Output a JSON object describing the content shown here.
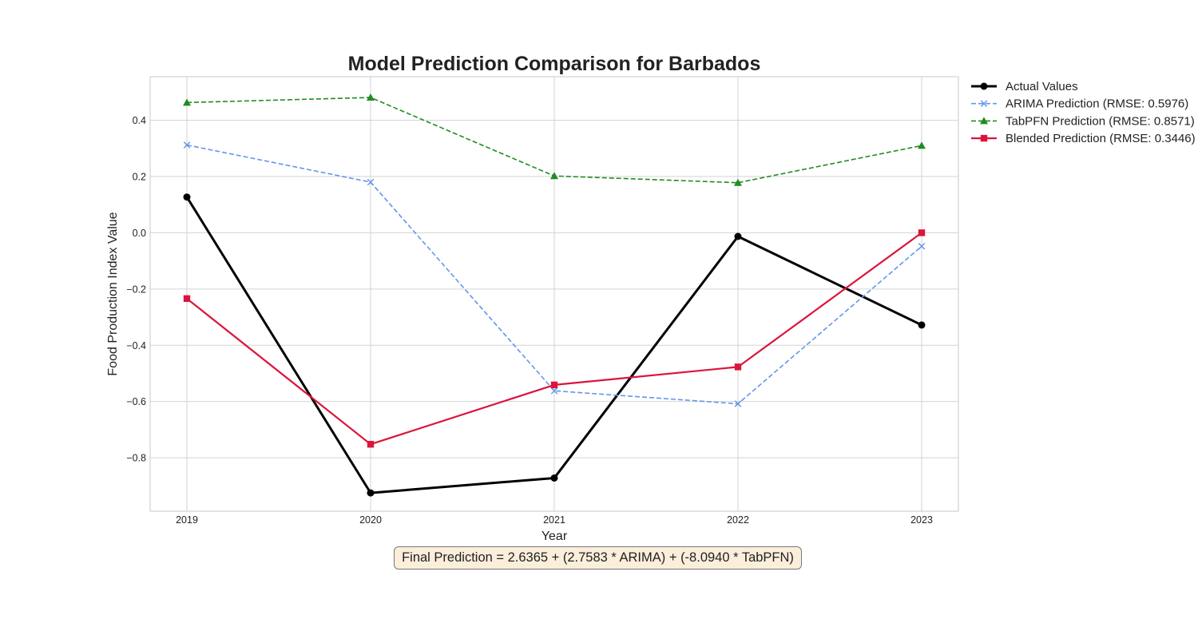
{
  "chart_data": {
    "type": "line",
    "title": "Model Prediction Comparison for Barbados",
    "xlabel": "Year",
    "ylabel": "Food Production Index Value",
    "x": [
      "2019",
      "2020",
      "2021",
      "2022",
      "2023"
    ],
    "xlim": [
      2018.8,
      2023.2
    ],
    "ylim": [
      -0.99,
      0.555
    ],
    "y_ticks": [
      "0.4",
      "0.2",
      "0.0",
      "−0.2",
      "−0.4",
      "−0.6",
      "−0.8"
    ],
    "y_tick_values": [
      0.4,
      0.2,
      0.0,
      -0.2,
      -0.4,
      -0.6,
      -0.8
    ],
    "grid": true,
    "legend_position": "outside-top-right",
    "series": [
      {
        "name": "Actual Values",
        "values": [
          0.127,
          -0.925,
          -0.872,
          -0.013,
          -0.328
        ],
        "color": "#000000",
        "marker": "circle",
        "line_style": "solid"
      },
      {
        "name": "ARIMA Prediction (RMSE: 0.5976)",
        "values": [
          0.312,
          0.18,
          -0.562,
          -0.608,
          -0.048
        ],
        "color": "#6495ed",
        "marker": "x",
        "line_style": "dashed"
      },
      {
        "name": "TabPFN Prediction (RMSE: 0.8571)",
        "values": [
          0.463,
          0.481,
          0.202,
          0.178,
          0.31
        ],
        "color": "#228b22",
        "marker": "triangle",
        "line_style": "dashed"
      },
      {
        "name": "Blended Prediction (RMSE: 0.3446)",
        "values": [
          -0.234,
          -0.752,
          -0.541,
          -0.477,
          0.0
        ],
        "color": "#dc143c",
        "marker": "square",
        "line_style": "solid"
      }
    ],
    "annotation": "Final Prediction = 2.6365 + (2.7583 * ARIMA) + (-8.0940 * TabPFN)"
  }
}
